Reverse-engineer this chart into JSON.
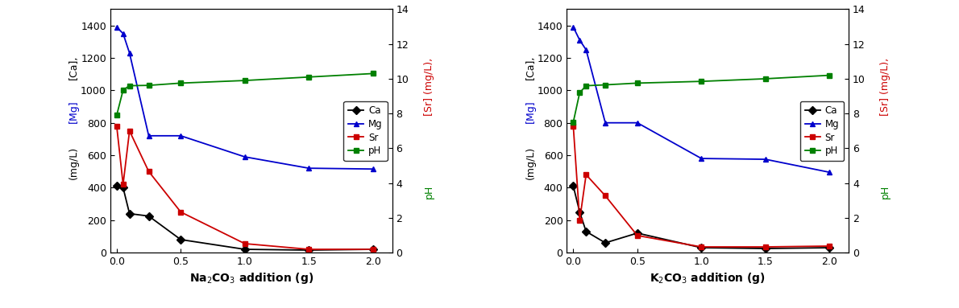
{
  "left": {
    "xlabel": "Na$_2$CO$_3$ addition (g)",
    "x": [
      0.0,
      0.05,
      0.1,
      0.25,
      0.5,
      1.0,
      1.5,
      2.0
    ],
    "Ca": [
      410,
      400,
      240,
      225,
      80,
      20,
      15,
      20
    ],
    "Mg": [
      1390,
      1350,
      1230,
      720,
      720,
      590,
      520,
      515
    ],
    "Sr": [
      780,
      420,
      750,
      500,
      250,
      55,
      20,
      20
    ],
    "pH": [
      7.9,
      9.35,
      9.6,
      9.62,
      9.75,
      9.9,
      10.1,
      10.3
    ]
  },
  "right": {
    "xlabel": "K$_2$CO$_3$ addition (g)",
    "x": [
      0.0,
      0.05,
      0.1,
      0.25,
      0.5,
      1.0,
      1.5,
      2.0
    ],
    "Ca": [
      410,
      250,
      130,
      60,
      120,
      30,
      25,
      30
    ],
    "Mg": [
      1390,
      1310,
      1250,
      800,
      800,
      580,
      575,
      495
    ],
    "Sr": [
      780,
      200,
      480,
      350,
      105,
      35,
      35,
      40
    ],
    "pH": [
      7.5,
      9.2,
      9.6,
      9.65,
      9.75,
      9.85,
      10.0,
      10.2
    ]
  },
  "left_ylim": [
    0,
    1500
  ],
  "right_ylim": [
    0,
    14
  ],
  "left_yticks": [
    0,
    200,
    400,
    600,
    800,
    1000,
    1200,
    1400
  ],
  "right_yticks": [
    0,
    2,
    4,
    6,
    8,
    10,
    12,
    14
  ],
  "xticks": [
    0.0,
    0.5,
    1.0,
    1.5,
    2.0
  ],
  "xlim": [
    -0.05,
    2.15
  ],
  "Ca_color": "#000000",
  "Mg_color": "#0000cc",
  "Sr_color": "#cc0000",
  "pH_color": "#008000",
  "legend_labels": [
    "Ca",
    "Mg",
    "Sr",
    "pH"
  ],
  "marker_Ca": "D",
  "marker_Mg": "^",
  "marker_Sr": "s",
  "marker_pH": "s",
  "linewidth": 1.3,
  "markersize": 5,
  "lax_label1": "[Ca],",
  "lax_label2": "[Mg]",
  "lax_label3": "(mg/L)",
  "rax_label1": "[Sr] (mg/L),",
  "rax_label2": "pH"
}
